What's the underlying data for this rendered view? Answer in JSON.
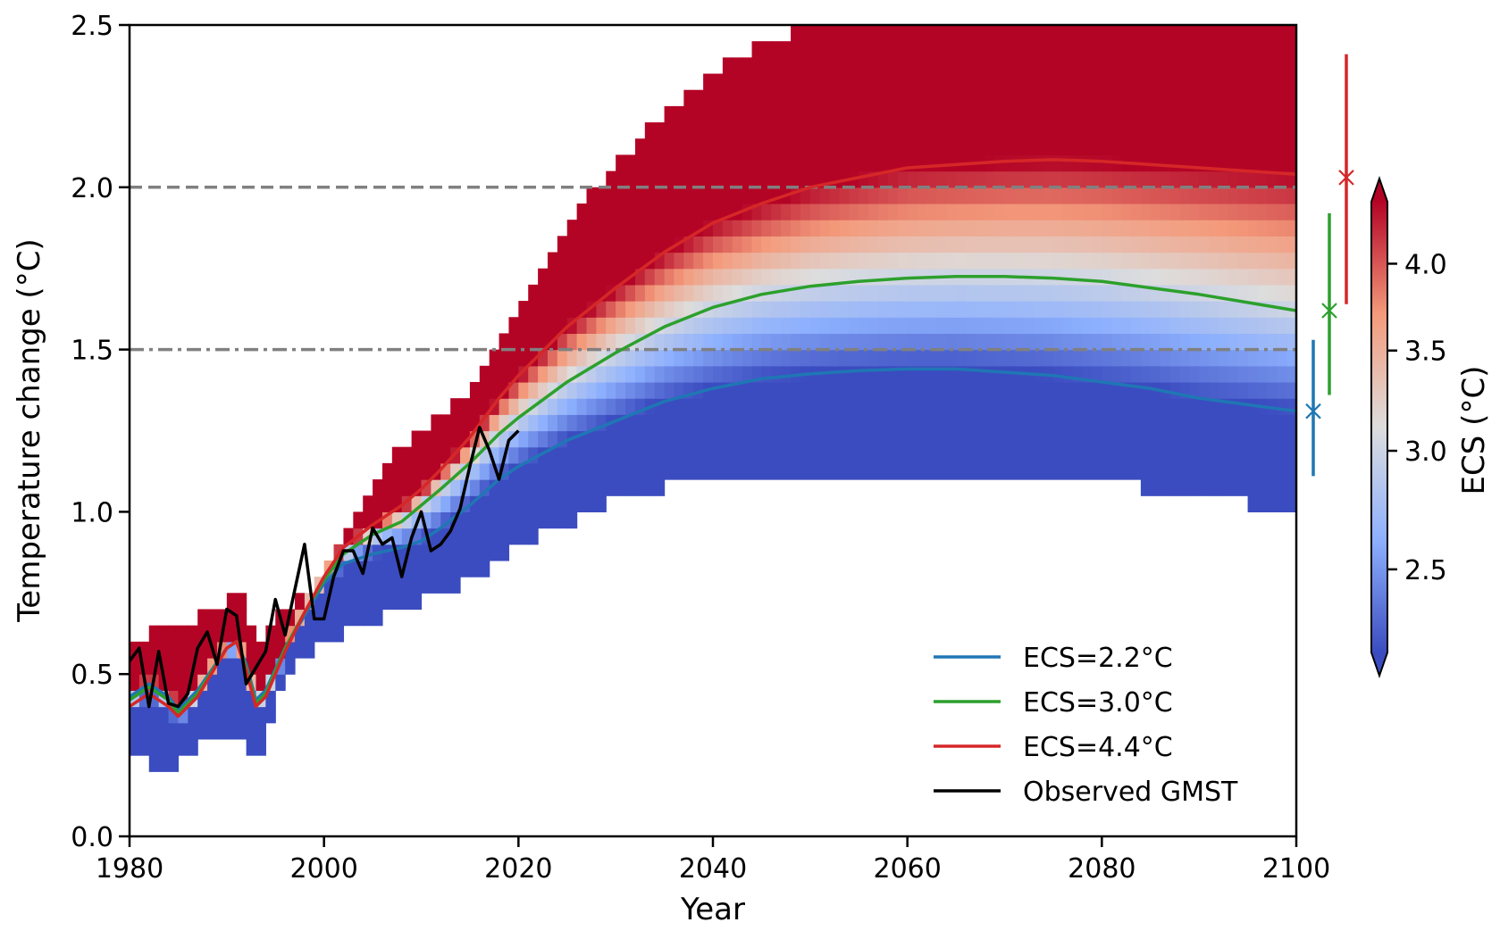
{
  "chart_data": {
    "type": "heatmap",
    "xlabel": "Year",
    "ylabel": "Temperature change (°C)",
    "xlim": [
      1980,
      2100
    ],
    "ylim": [
      0.0,
      2.5
    ],
    "xticks": [
      1980,
      2000,
      2020,
      2040,
      2060,
      2080,
      2100
    ],
    "xtick_labels": [
      "1980",
      "2000",
      "2020",
      "2040",
      "2060",
      "2080",
      "2100"
    ],
    "yticks": [
      0.0,
      0.5,
      1.0,
      1.5,
      2.0,
      2.5
    ],
    "ytick_labels": [
      "0.0",
      "0.5",
      "1.0",
      "1.5",
      "2.0",
      "2.5"
    ],
    "reference_lines": [
      {
        "y": 2.0,
        "style": "dashed",
        "color": "#808080"
      },
      {
        "y": 1.5,
        "style": "dashdot",
        "color": "#808080"
      }
    ],
    "heatmap": {
      "description": "Temperature change pathways coloured by ECS; warmer colours = higher ECS",
      "colormap": "coolwarm",
      "cmin": 2.2,
      "cmax": 4.4,
      "lower_edge": [
        [
          1980,
          0.26
        ],
        [
          1984,
          0.2
        ],
        [
          1988,
          0.3
        ],
        [
          1992,
          0.3
        ],
        [
          1993,
          0.2
        ],
        [
          1996,
          0.5
        ],
        [
          2000,
          0.6
        ],
        [
          2004,
          0.65
        ],
        [
          2010,
          0.72
        ],
        [
          2016,
          0.8
        ],
        [
          2020,
          0.9
        ],
        [
          2024,
          0.95
        ],
        [
          2030,
          1.05
        ],
        [
          2040,
          1.1
        ],
        [
          2060,
          1.1
        ],
        [
          2084,
          1.1
        ],
        [
          2085,
          1.05
        ],
        [
          2095,
          1.05
        ],
        [
          2096,
          1.0
        ],
        [
          2100,
          1.0
        ]
      ],
      "upper_edge": [
        [
          1980,
          0.6
        ],
        [
          1984,
          0.65
        ],
        [
          1990,
          0.7
        ],
        [
          1991,
          0.8
        ],
        [
          1993,
          0.6
        ],
        [
          1996,
          0.7
        ],
        [
          2000,
          0.8
        ],
        [
          2004,
          1.05
        ],
        [
          2008,
          1.2
        ],
        [
          2014,
          1.35
        ],
        [
          2018,
          1.55
        ],
        [
          2022,
          1.75
        ],
        [
          2026,
          1.92
        ],
        [
          2030,
          2.08
        ],
        [
          2036,
          2.25
        ],
        [
          2042,
          2.4
        ],
        [
          2050,
          2.5
        ],
        [
          2100,
          2.5
        ]
      ]
    },
    "series": [
      {
        "name": "ECS=2.2°C",
        "color": "#1f77b4",
        "x": [
          1980,
          1982,
          1984,
          1985,
          1987,
          1990,
          1991,
          1992,
          1993,
          1994,
          1996,
          1998,
          2000,
          2002,
          2005,
          2008,
          2010,
          2012,
          2015,
          2018,
          2020,
          2025,
          2030,
          2035,
          2040,
          2045,
          2050,
          2055,
          2060,
          2062,
          2065,
          2070,
          2075,
          2080,
          2085,
          2090,
          2095,
          2100
        ],
        "values": [
          0.43,
          0.47,
          0.43,
          0.39,
          0.45,
          0.58,
          0.6,
          0.53,
          0.42,
          0.45,
          0.58,
          0.68,
          0.78,
          0.84,
          0.87,
          0.89,
          0.91,
          0.95,
          1.02,
          1.1,
          1.14,
          1.22,
          1.28,
          1.34,
          1.38,
          1.41,
          1.425,
          1.435,
          1.44,
          1.44,
          1.44,
          1.43,
          1.42,
          1.4,
          1.38,
          1.35,
          1.33,
          1.31
        ]
      },
      {
        "name": "ECS=3.0°C",
        "color": "#2ca02c",
        "x": [
          1980,
          1982,
          1984,
          1985,
          1987,
          1990,
          1991,
          1992,
          1993,
          1994,
          1996,
          1998,
          2000,
          2002,
          2005,
          2008,
          2010,
          2012,
          2015,
          2018,
          2020,
          2025,
          2030,
          2035,
          2040,
          2045,
          2050,
          2055,
          2060,
          2065,
          2070,
          2075,
          2080,
          2085,
          2090,
          2095,
          2100
        ],
        "values": [
          0.42,
          0.46,
          0.42,
          0.38,
          0.44,
          0.58,
          0.6,
          0.52,
          0.41,
          0.44,
          0.58,
          0.69,
          0.79,
          0.87,
          0.93,
          0.97,
          1.02,
          1.07,
          1.15,
          1.24,
          1.29,
          1.4,
          1.49,
          1.57,
          1.63,
          1.67,
          1.695,
          1.71,
          1.72,
          1.725,
          1.725,
          1.72,
          1.71,
          1.69,
          1.67,
          1.645,
          1.62
        ]
      },
      {
        "name": "ECS=4.4°C",
        "color": "#d62728",
        "x": [
          1980,
          1982,
          1984,
          1985,
          1987,
          1990,
          1991,
          1992,
          1993,
          1994,
          1996,
          1998,
          2000,
          2002,
          2005,
          2008,
          2010,
          2012,
          2015,
          2018,
          2020,
          2025,
          2030,
          2035,
          2040,
          2045,
          2050,
          2055,
          2060,
          2065,
          2070,
          2075,
          2080,
          2085,
          2090,
          2095,
          2100
        ],
        "values": [
          0.4,
          0.44,
          0.4,
          0.37,
          0.43,
          0.58,
          0.6,
          0.51,
          0.4,
          0.43,
          0.57,
          0.69,
          0.8,
          0.89,
          0.96,
          1.02,
          1.07,
          1.13,
          1.23,
          1.35,
          1.42,
          1.57,
          1.69,
          1.8,
          1.89,
          1.95,
          2.0,
          2.03,
          2.06,
          2.07,
          2.08,
          2.085,
          2.08,
          2.07,
          2.06,
          2.05,
          2.04
        ]
      },
      {
        "name": "Observed GMST",
        "color": "#000000",
        "x": [
          1980,
          1981,
          1982,
          1983,
          1984,
          1985,
          1986,
          1987,
          1988,
          1989,
          1990,
          1991,
          1992,
          1993,
          1994,
          1995,
          1996,
          1997,
          1998,
          1999,
          2000,
          2001,
          2002,
          2003,
          2004,
          2005,
          2006,
          2007,
          2008,
          2009,
          2010,
          2011,
          2012,
          2013,
          2014,
          2015,
          2016,
          2017,
          2018,
          2019,
          2020
        ],
        "values": [
          0.54,
          0.58,
          0.4,
          0.57,
          0.41,
          0.4,
          0.44,
          0.58,
          0.63,
          0.53,
          0.7,
          0.68,
          0.47,
          0.52,
          0.57,
          0.73,
          0.62,
          0.76,
          0.9,
          0.67,
          0.67,
          0.8,
          0.88,
          0.88,
          0.81,
          0.95,
          0.9,
          0.92,
          0.8,
          0.92,
          1.0,
          0.88,
          0.9,
          0.94,
          1.01,
          1.14,
          1.26,
          1.19,
          1.1,
          1.22,
          1.25
        ]
      }
    ],
    "range_bars": [
      {
        "name": "ECS=2.2°C",
        "color": "#1f77b4",
        "low": 1.11,
        "mid": 1.31,
        "high": 1.53
      },
      {
        "name": "ECS=3.0°C",
        "color": "#2ca02c",
        "low": 1.36,
        "mid": 1.62,
        "high": 1.92
      },
      {
        "name": "ECS=4.4°C",
        "color": "#d62728",
        "low": 1.64,
        "mid": 2.03,
        "high": 2.41
      }
    ],
    "legend": {
      "placement": "lower-right",
      "entries": [
        "ECS=2.2°C",
        "ECS=3.0°C",
        "ECS=4.4°C",
        "Observed GMST"
      ]
    },
    "colorbar": {
      "label": "ECS (°C)",
      "ticks": [
        4.0,
        3.5,
        3.0,
        2.5
      ],
      "tick_labels": [
        "4.0",
        "3.5",
        "3.0",
        "2.5"
      ],
      "scale": "log",
      "range": [
        2.2,
        4.4
      ],
      "extend": "both"
    }
  }
}
